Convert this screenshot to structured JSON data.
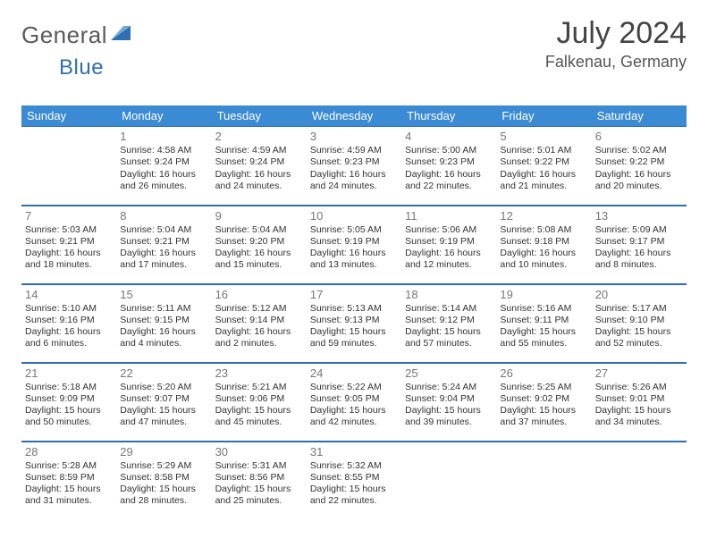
{
  "brand": {
    "part1": "General",
    "part2": "Blue"
  },
  "title": "July 2024",
  "location": "Falkenau, Germany",
  "colors": {
    "header_bg": "#3b8bd4",
    "rule": "#2f6fb0",
    "text": "#333333",
    "muted": "#777777"
  },
  "day_headers": [
    "Sunday",
    "Monday",
    "Tuesday",
    "Wednesday",
    "Thursday",
    "Friday",
    "Saturday"
  ],
  "weeks": [
    [
      null,
      {
        "n": "1",
        "sr": "4:58 AM",
        "ss": "9:24 PM",
        "dl": "16 hours and 26 minutes."
      },
      {
        "n": "2",
        "sr": "4:59 AM",
        "ss": "9:24 PM",
        "dl": "16 hours and 24 minutes."
      },
      {
        "n": "3",
        "sr": "4:59 AM",
        "ss": "9:23 PM",
        "dl": "16 hours and 24 minutes."
      },
      {
        "n": "4",
        "sr": "5:00 AM",
        "ss": "9:23 PM",
        "dl": "16 hours and 22 minutes."
      },
      {
        "n": "5",
        "sr": "5:01 AM",
        "ss": "9:22 PM",
        "dl": "16 hours and 21 minutes."
      },
      {
        "n": "6",
        "sr": "5:02 AM",
        "ss": "9:22 PM",
        "dl": "16 hours and 20 minutes."
      }
    ],
    [
      {
        "n": "7",
        "sr": "5:03 AM",
        "ss": "9:21 PM",
        "dl": "16 hours and 18 minutes."
      },
      {
        "n": "8",
        "sr": "5:04 AM",
        "ss": "9:21 PM",
        "dl": "16 hours and 17 minutes."
      },
      {
        "n": "9",
        "sr": "5:04 AM",
        "ss": "9:20 PM",
        "dl": "16 hours and 15 minutes."
      },
      {
        "n": "10",
        "sr": "5:05 AM",
        "ss": "9:19 PM",
        "dl": "16 hours and 13 minutes."
      },
      {
        "n": "11",
        "sr": "5:06 AM",
        "ss": "9:19 PM",
        "dl": "16 hours and 12 minutes."
      },
      {
        "n": "12",
        "sr": "5:08 AM",
        "ss": "9:18 PM",
        "dl": "16 hours and 10 minutes."
      },
      {
        "n": "13",
        "sr": "5:09 AM",
        "ss": "9:17 PM",
        "dl": "16 hours and 8 minutes."
      }
    ],
    [
      {
        "n": "14",
        "sr": "5:10 AM",
        "ss": "9:16 PM",
        "dl": "16 hours and 6 minutes."
      },
      {
        "n": "15",
        "sr": "5:11 AM",
        "ss": "9:15 PM",
        "dl": "16 hours and 4 minutes."
      },
      {
        "n": "16",
        "sr": "5:12 AM",
        "ss": "9:14 PM",
        "dl": "16 hours and 2 minutes."
      },
      {
        "n": "17",
        "sr": "5:13 AM",
        "ss": "9:13 PM",
        "dl": "15 hours and 59 minutes."
      },
      {
        "n": "18",
        "sr": "5:14 AM",
        "ss": "9:12 PM",
        "dl": "15 hours and 57 minutes."
      },
      {
        "n": "19",
        "sr": "5:16 AM",
        "ss": "9:11 PM",
        "dl": "15 hours and 55 minutes."
      },
      {
        "n": "20",
        "sr": "5:17 AM",
        "ss": "9:10 PM",
        "dl": "15 hours and 52 minutes."
      }
    ],
    [
      {
        "n": "21",
        "sr": "5:18 AM",
        "ss": "9:09 PM",
        "dl": "15 hours and 50 minutes."
      },
      {
        "n": "22",
        "sr": "5:20 AM",
        "ss": "9:07 PM",
        "dl": "15 hours and 47 minutes."
      },
      {
        "n": "23",
        "sr": "5:21 AM",
        "ss": "9:06 PM",
        "dl": "15 hours and 45 minutes."
      },
      {
        "n": "24",
        "sr": "5:22 AM",
        "ss": "9:05 PM",
        "dl": "15 hours and 42 minutes."
      },
      {
        "n": "25",
        "sr": "5:24 AM",
        "ss": "9:04 PM",
        "dl": "15 hours and 39 minutes."
      },
      {
        "n": "26",
        "sr": "5:25 AM",
        "ss": "9:02 PM",
        "dl": "15 hours and 37 minutes."
      },
      {
        "n": "27",
        "sr": "5:26 AM",
        "ss": "9:01 PM",
        "dl": "15 hours and 34 minutes."
      }
    ],
    [
      {
        "n": "28",
        "sr": "5:28 AM",
        "ss": "8:59 PM",
        "dl": "15 hours and 31 minutes."
      },
      {
        "n": "29",
        "sr": "5:29 AM",
        "ss": "8:58 PM",
        "dl": "15 hours and 28 minutes."
      },
      {
        "n": "30",
        "sr": "5:31 AM",
        "ss": "8:56 PM",
        "dl": "15 hours and 25 minutes."
      },
      {
        "n": "31",
        "sr": "5:32 AM",
        "ss": "8:55 PM",
        "dl": "15 hours and 22 minutes."
      },
      null,
      null,
      null
    ]
  ],
  "labels": {
    "sunrise": "Sunrise: ",
    "sunset": "Sunset: ",
    "daylight": "Daylight: "
  }
}
